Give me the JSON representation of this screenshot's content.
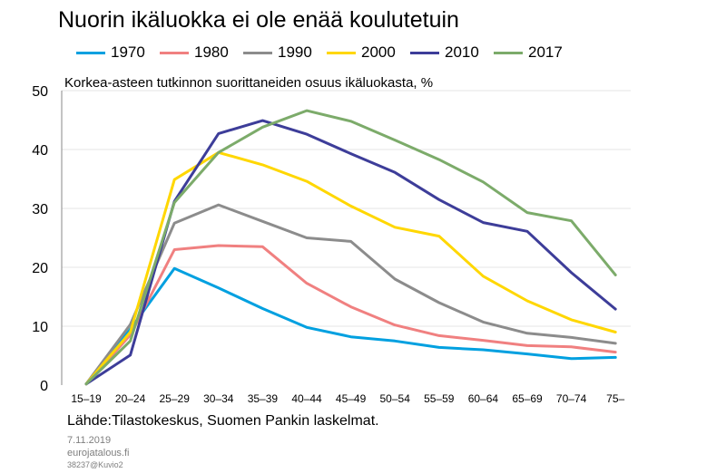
{
  "chart_data": {
    "type": "line",
    "title": "Nuorin ikäluokka ei ole enää koulutetuin",
    "subtitle": "Korkea-asteen tutkinnon suorittaneiden osuus ikäluokasta, %",
    "categories": [
      "15–19",
      "20–24",
      "25–29",
      "30–34",
      "35–39",
      "40–44",
      "45–49",
      "50–54",
      "55–59",
      "60–64",
      "65–69",
      "70–74",
      "75–"
    ],
    "ylim": [
      0,
      50
    ],
    "yticks": [
      0,
      10,
      20,
      30,
      40,
      50
    ],
    "grid": true,
    "legend_position": "top",
    "series": [
      {
        "name": "1970",
        "color": "#00a0e0",
        "values": [
          0.2,
          9.5,
          19.8,
          16.5,
          13.0,
          9.8,
          8.2,
          7.5,
          6.4,
          6.0,
          5.3,
          4.5,
          4.7
        ]
      },
      {
        "name": "1980",
        "color": "#f08080",
        "values": [
          0.2,
          8.5,
          23.0,
          23.7,
          23.5,
          17.3,
          13.3,
          10.2,
          8.4,
          7.6,
          6.7,
          6.5,
          5.6
        ]
      },
      {
        "name": "1990",
        "color": "#8c8c8c",
        "values": [
          0.2,
          10.3,
          27.5,
          30.6,
          27.8,
          25.0,
          24.4,
          18.0,
          14.0,
          10.7,
          8.8,
          8.1,
          7.1
        ]
      },
      {
        "name": "2000",
        "color": "#ffd700",
        "values": [
          0.2,
          9.0,
          34.9,
          39.5,
          37.4,
          34.6,
          30.4,
          26.8,
          25.3,
          18.5,
          14.3,
          11.1,
          9.0
        ]
      },
      {
        "name": "2010",
        "color": "#3d3d99",
        "values": [
          0.2,
          5.1,
          31.2,
          42.7,
          44.9,
          42.6,
          39.3,
          36.1,
          31.5,
          27.6,
          26.1,
          19.1,
          12.9
        ]
      },
      {
        "name": "2017",
        "color": "#7cab6a",
        "values": [
          0.2,
          7.5,
          31.0,
          39.5,
          43.8,
          46.6,
          44.8,
          41.6,
          38.3,
          34.5,
          29.3,
          27.9,
          18.7
        ]
      }
    ]
  },
  "source": "Lähde:Tilastokeskus, Suomen Pankin laskelmat.",
  "date": "7.11.2019",
  "site": "eurojatalous.fi",
  "code": "38237@Kuvio2"
}
